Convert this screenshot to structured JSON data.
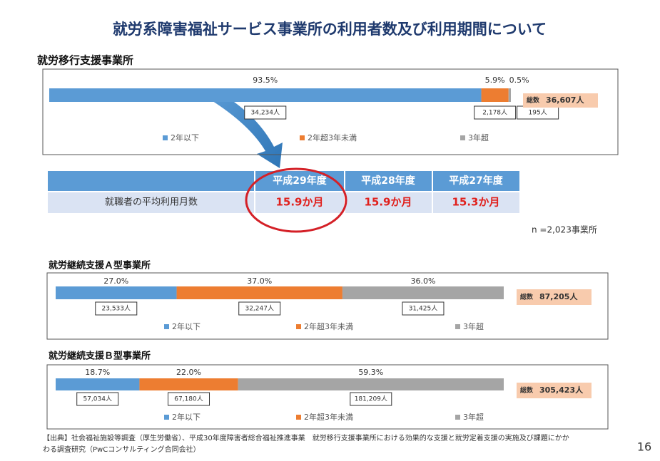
{
  "title": "就労系障害福祉サービス事業所の利用者数及び利用期間について",
  "chart_data": [
    {
      "type": "bar",
      "title": "就労移行支援事業所",
      "series": [
        {
          "name": "2年以下",
          "color": "#5b9bd5",
          "values": [
            93.5
          ],
          "value_labels": [
            "93.5%"
          ],
          "count_labels": [
            "34,234人"
          ]
        },
        {
          "name": "2年超3年未満",
          "color": "#ed7d31",
          "values": [
            5.9
          ],
          "value_labels": [
            "5.9%"
          ],
          "count_labels": [
            "2,178人"
          ]
        },
        {
          "name": "3年超",
          "color": "#a5a5a5",
          "values": [
            0.5
          ],
          "value_labels": [
            "0.5%"
          ],
          "count_labels": [
            "195人"
          ]
        }
      ],
      "total_label": "総数",
      "total": "36,607人"
    },
    {
      "type": "bar",
      "title": "就労継続支援Ａ型事業所",
      "series": [
        {
          "name": "2年以下",
          "color": "#5b9bd5",
          "values": [
            27.0
          ],
          "value_labels": [
            "27.0%"
          ],
          "count_labels": [
            "23,533人"
          ]
        },
        {
          "name": "2年超3年未満",
          "color": "#ed7d31",
          "values": [
            37.0
          ],
          "value_labels": [
            "37.0%"
          ],
          "count_labels": [
            "32,247人"
          ]
        },
        {
          "name": "3年超",
          "color": "#a5a5a5",
          "values": [
            36.0
          ],
          "value_labels": [
            "36.0%"
          ],
          "count_labels": [
            "31,425人"
          ]
        }
      ],
      "total_label": "総数",
      "total": "87,205人"
    },
    {
      "type": "bar",
      "title": "就労継続支援Ｂ型事業所",
      "series": [
        {
          "name": "2年以下",
          "color": "#5b9bd5",
          "values": [
            18.7
          ],
          "value_labels": [
            "18.7%"
          ],
          "count_labels": [
            "57,034人"
          ]
        },
        {
          "name": "2年超3年未満",
          "color": "#ed7d31",
          "values": [
            22.0
          ],
          "value_labels": [
            "22.0%"
          ],
          "count_labels": [
            "67,180人"
          ]
        },
        {
          "name": "3年超",
          "color": "#a5a5a5",
          "values": [
            59.3
          ],
          "value_labels": [
            "59.3%"
          ],
          "count_labels": [
            "181,209人"
          ]
        }
      ],
      "total_label": "総数",
      "total": "305,423人"
    }
  ],
  "table": {
    "columns": [
      "平成29年度",
      "平成28年度",
      "平成27年度"
    ],
    "rows": [
      {
        "label": "就職者の平均利用月数",
        "values": [
          "15.9か月",
          "15.9か月",
          "15.3か月"
        ]
      }
    ]
  },
  "sample_note": "n =2,023事業所",
  "source_note": [
    "【出典】社会福祉施設等調査（厚生労働省）、平成30年度障害者総合福祉推進事業　就労移行支援事業所における効果的な支援と就労定着支援の実施及び課題にかか",
    "わる調査研究（PwCコンサルティング合同会社）"
  ],
  "page_number": "16"
}
